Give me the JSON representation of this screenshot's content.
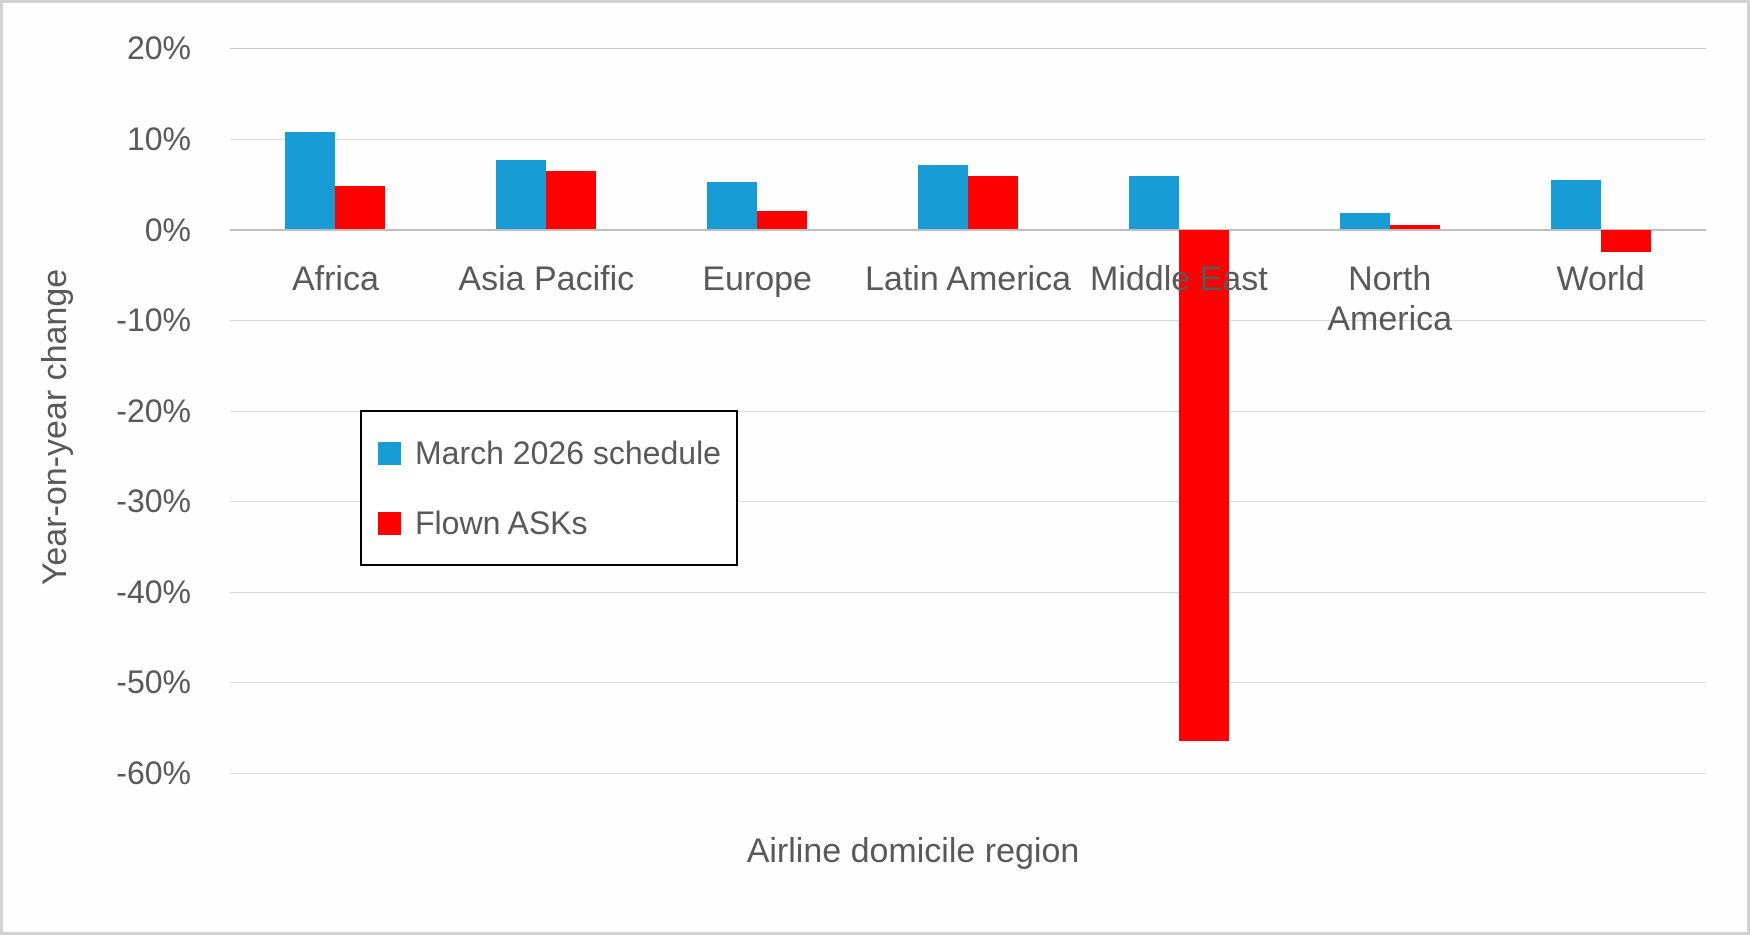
{
  "chart_data": {
    "type": "bar",
    "title": "",
    "xlabel": "Airline domicile region",
    "ylabel": "Year-on-year change",
    "categories": [
      "Africa",
      "Asia Pacific",
      "Europe",
      "Latin America",
      "Middle East",
      "North\nAmerica",
      "World"
    ],
    "series": [
      {
        "name": "March 2026 schedule",
        "color": "#189cd6",
        "values": [
          10.8,
          7.7,
          5.2,
          7.1,
          5.9,
          1.8,
          5.5
        ]
      },
      {
        "name": "Flown ASKs",
        "color": "#ff0000",
        "values": [
          4.8,
          6.5,
          2.0,
          5.9,
          -56.5,
          0.5,
          -2.5
        ]
      }
    ],
    "y_ticks": [
      {
        "label": "20%",
        "value": 20
      },
      {
        "label": "10%",
        "value": 10
      },
      {
        "label": "0%",
        "value": 0
      },
      {
        "label": "-10%",
        "value": -10
      },
      {
        "label": "-20%",
        "value": -20
      },
      {
        "label": "-30%",
        "value": -30
      },
      {
        "label": "-40%",
        "value": -40
      },
      {
        "label": "-50%",
        "value": -50
      },
      {
        "label": "-60%",
        "value": -60
      }
    ],
    "ylim": [
      -60,
      20
    ],
    "grid": true,
    "legend_position": "inside-left",
    "colors": {
      "text": "#595959",
      "gridline": "#d9d9d9",
      "zero_axis": "#bfbfbf",
      "legend_border": "#000000",
      "background": "#fefefe"
    }
  }
}
